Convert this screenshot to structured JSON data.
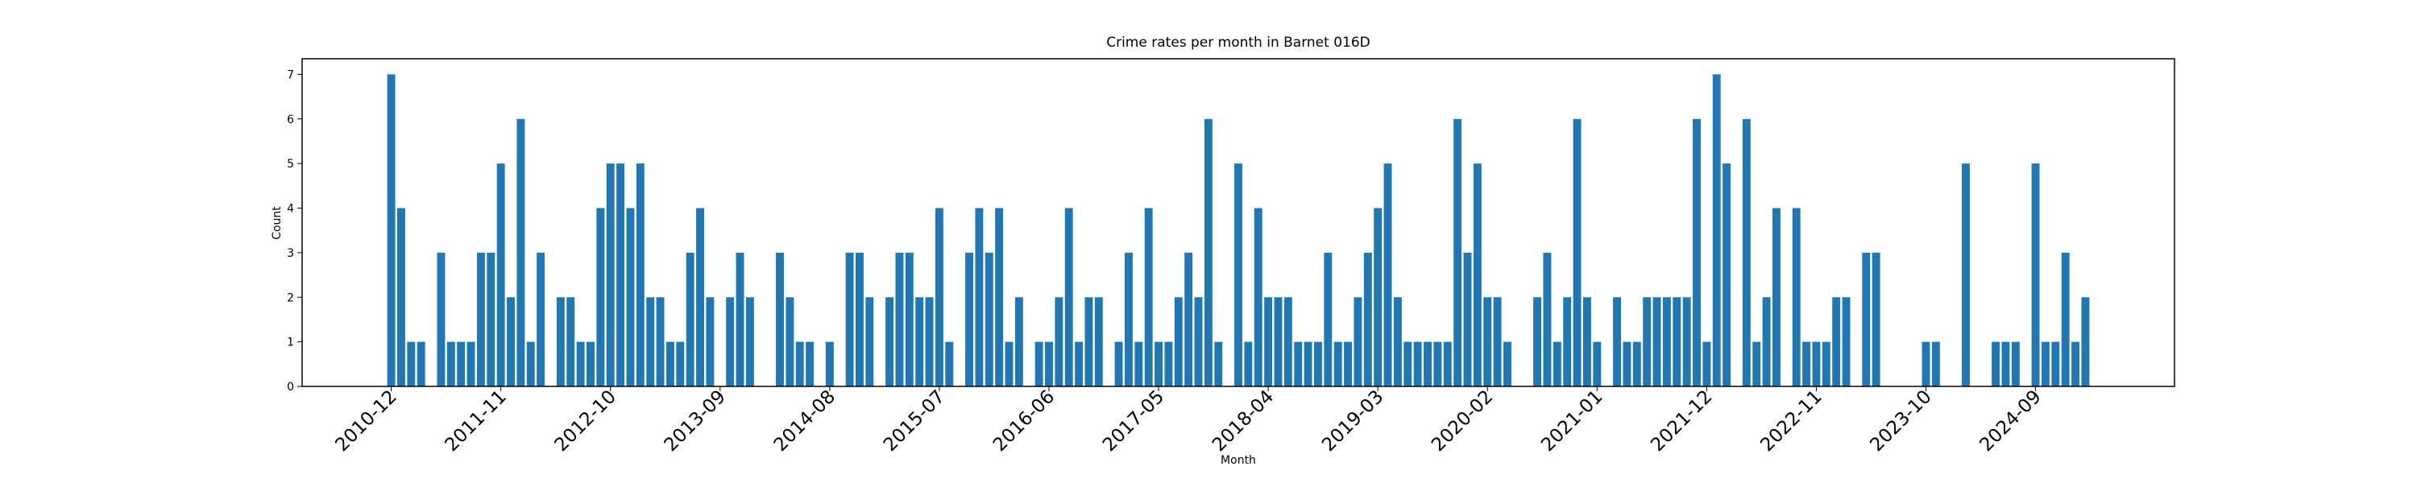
{
  "chart_data": {
    "type": "bar",
    "title": "Crime rates per month in Barnet 016D",
    "x_label": "Month",
    "y_label": "Count",
    "color": "#1f77b4",
    "categories": [
      "2010-12",
      null,
      null,
      null,
      null,
      null,
      null,
      null,
      null,
      null,
      null,
      "2011-11",
      null,
      null,
      null,
      null,
      null,
      null,
      null,
      null,
      null,
      null,
      "2012-10",
      null,
      null,
      null,
      null,
      null,
      null,
      null,
      null,
      null,
      null,
      "2013-09",
      null,
      null,
      null,
      null,
      null,
      null,
      null,
      null,
      null,
      null,
      "2014-08",
      null,
      null,
      null,
      null,
      null,
      null,
      null,
      null,
      null,
      null,
      "2015-07",
      null,
      null,
      null,
      null,
      null,
      null,
      null,
      null,
      null,
      null,
      "2016-06",
      null,
      null,
      null,
      null,
      null,
      null,
      null,
      null,
      null,
      null,
      "2017-05",
      null,
      null,
      null,
      null,
      null,
      null,
      null,
      null,
      null,
      null,
      "2018-04",
      null,
      null,
      null,
      null,
      null,
      null,
      null,
      null,
      null,
      null,
      "2019-03",
      null,
      null,
      null,
      null,
      null,
      null,
      null,
      null,
      null,
      null,
      "2020-02",
      null,
      null,
      null,
      null,
      null,
      null,
      null,
      null,
      null,
      null,
      "2021-01",
      null,
      null,
      null,
      null,
      null,
      null,
      null,
      null,
      null,
      null,
      "2021-12",
      null,
      null,
      null,
      null,
      null,
      null,
      null,
      null,
      null,
      null,
      "2022-11",
      null,
      null,
      null,
      null,
      null,
      null,
      null,
      null,
      null,
      null,
      "2023-10",
      null,
      null,
      null,
      null,
      null,
      null,
      null,
      null,
      null,
      null,
      "2024-09",
      null,
      null,
      null,
      null,
      null
    ],
    "values": [
      7,
      4,
      1,
      1,
      null,
      3,
      1,
      1,
      1,
      3,
      3,
      5,
      2,
      6,
      1,
      3,
      null,
      2,
      2,
      1,
      1,
      4,
      5,
      5,
      4,
      5,
      2,
      2,
      1,
      1,
      3,
      4,
      2,
      null,
      2,
      3,
      2,
      null,
      null,
      3,
      2,
      1,
      1,
      null,
      1,
      null,
      3,
      3,
      2,
      null,
      2,
      3,
      3,
      2,
      2,
      4,
      1,
      null,
      3,
      4,
      3,
      4,
      1,
      2,
      null,
      1,
      1,
      2,
      4,
      1,
      2,
      2,
      null,
      1,
      3,
      1,
      4,
      1,
      1,
      2,
      3,
      2,
      6,
      1,
      null,
      5,
      1,
      4,
      2,
      2,
      2,
      1,
      1,
      1,
      3,
      1,
      1,
      2,
      3,
      4,
      5,
      2,
      1,
      1,
      1,
      1,
      1,
      6,
      3,
      5,
      2,
      2,
      1,
      null,
      null,
      2,
      3,
      1,
      2,
      6,
      2,
      1,
      null,
      2,
      1,
      1,
      2,
      2,
      2,
      2,
      2,
      6,
      1,
      7,
      5,
      null,
      6,
      1,
      2,
      4,
      null,
      4,
      1,
      1,
      1,
      2,
      2,
      null,
      3,
      3,
      null,
      null,
      null,
      null,
      1,
      1,
      null,
      null,
      5,
      null,
      null,
      1,
      1,
      1,
      null,
      5,
      1,
      1,
      3,
      1,
      2
    ],
    "ylim": [
      0,
      7.35
    ],
    "yticks": [
      0,
      1,
      2,
      3,
      4,
      5,
      6,
      7
    ]
  }
}
